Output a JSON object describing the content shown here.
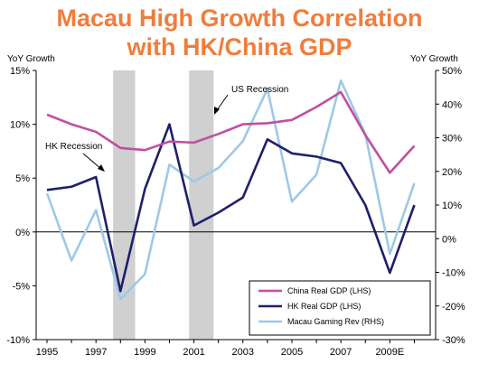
{
  "title_line1": "Macau High Growth Correlation",
  "title_line2": "with HK/China GDP",
  "colors": {
    "title": "#f07d3b",
    "china": "#c04fa0",
    "hk": "#1f1f6b",
    "macau": "#9ec9e6",
    "recession_band": "#c8c8c8"
  },
  "chart_data": {
    "type": "line",
    "x": [
      1995,
      1996,
      1997,
      1998,
      1999,
      2000,
      2001,
      2002,
      2003,
      2004,
      2005,
      2006,
      2007,
      2008,
      2009,
      2010
    ],
    "x_tick_labels": [
      "1995",
      "1997",
      "1999",
      "2001",
      "2003",
      "2005",
      "2007",
      "2009E"
    ],
    "left_axis": {
      "label": "YoY Growth",
      "ticks": [
        "15%",
        "10%",
        "5%",
        "0%",
        "-5%",
        "-10%"
      ],
      "ylim": [
        -10,
        15
      ]
    },
    "right_axis": {
      "label": "YoY Growth",
      "ticks": [
        "50%",
        "40%",
        "30%",
        "20%",
        "10%",
        "0%",
        "-10%",
        "-20%",
        "-30%"
      ],
      "ylim": [
        -30,
        50
      ]
    },
    "series": [
      {
        "name": "China Real GDP (LHS)",
        "axis": "left",
        "values": [
          10.9,
          10.0,
          9.3,
          7.8,
          7.6,
          8.4,
          8.3,
          9.1,
          10.0,
          10.1,
          10.4,
          11.6,
          13.0,
          9.0,
          5.5,
          8.0
        ]
      },
      {
        "name": "HK Real GDP (LHS)",
        "axis": "left",
        "values": [
          3.9,
          4.2,
          5.1,
          -5.5,
          4.0,
          10.0,
          0.6,
          1.8,
          3.2,
          8.6,
          7.3,
          7.0,
          6.4,
          2.5,
          -3.8,
          2.5
        ]
      },
      {
        "name": "Macau Gaming Rev (RHS)",
        "axis": "right",
        "values": [
          13.5,
          -6.5,
          8.5,
          -18.0,
          -10.5,
          22.0,
          17.0,
          21.0,
          29.0,
          44.5,
          11.0,
          19.0,
          47.0,
          31.0,
          -4.5,
          16.5
        ]
      }
    ],
    "recession_bands": [
      {
        "label": "HK Recession",
        "start": 1997.7,
        "end": 1998.6
      },
      {
        "label": "US Recession",
        "start": 2000.8,
        "end": 2001.8
      }
    ],
    "annotations": [
      {
        "text": "HK Recession"
      },
      {
        "text": "US Recession"
      }
    ],
    "grid": false,
    "legend_position": "bottom-right"
  }
}
